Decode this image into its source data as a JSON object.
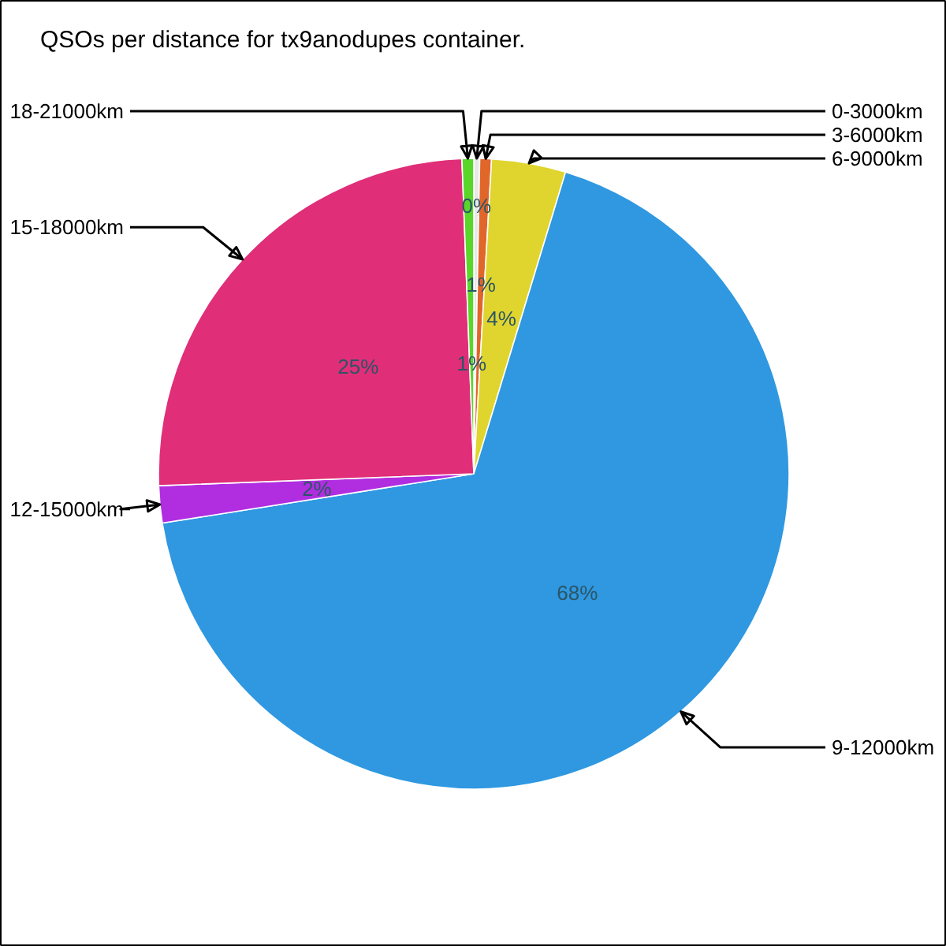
{
  "chart_data": {
    "type": "pie",
    "title": "QSOs per distance for tx9anodupes container.",
    "categories": [
      "0-3000km",
      "3-6000km",
      "6-9000km",
      "9-12000km",
      "12-15000km",
      "15-18000km",
      "18-21000km"
    ],
    "values": [
      0.3,
      0.6,
      3.8,
      67.8,
      1.9,
      25.0,
      0.6
    ],
    "value_labels": [
      "0%",
      "1%",
      "4%",
      "68%",
      "2%",
      "25%",
      "1%"
    ],
    "colors": [
      "#e8e8e8",
      "#e0662a",
      "#e0d52e",
      "#2f98e0",
      "#b02ee0",
      "#e02e78",
      "#5ad62a"
    ]
  }
}
